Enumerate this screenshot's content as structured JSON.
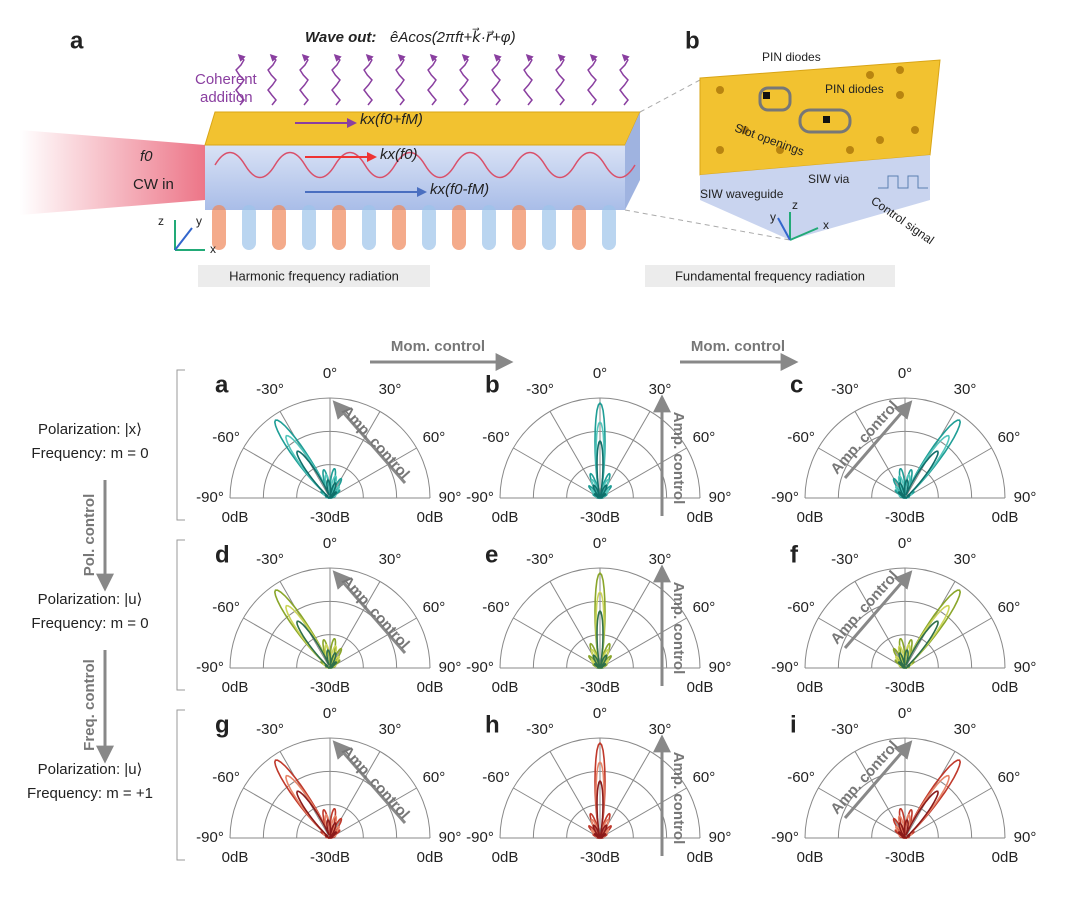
{
  "panel_a": {
    "label": "a",
    "wave_out": "Wave out:",
    "equation": "êAcos(2πft+k⃗·r⃗+φ)",
    "coherent_addition": [
      "Coherent",
      "addition"
    ],
    "f0": "f0",
    "cw_in": "CW in",
    "k_upper": "kx(f0+fM)",
    "k_mid": "kx(f0)",
    "k_lower": "kx(f0-fM)",
    "axes": [
      "z",
      "y",
      "x"
    ],
    "caption": "Harmonic frequency radiation"
  },
  "panel_b": {
    "label": "b",
    "pin_diodes": [
      "PIN diodes",
      "PIN diodes"
    ],
    "slot_openings": "Slot openings",
    "siw_waveguide": "SIW waveguide",
    "siw_via": "SIW via",
    "control_signal": "Control signal",
    "axes": [
      "z",
      "y",
      "x"
    ],
    "caption": "Fundamental frequency radiation"
  },
  "controls": {
    "momentum": [
      "Mom. control",
      "Mom. control"
    ],
    "polarization": "Pol. control",
    "frequency": "Freq. control",
    "amplitude": "Amp. control"
  },
  "rows": [
    {
      "polarization": "Polarization: |x⟩",
      "frequency": "Frequency: m = 0",
      "colors": [
        "#1f9e96",
        "#55c7bd",
        "#0f6f6a"
      ]
    },
    {
      "polarization": "Polarization: |u⟩",
      "frequency": "Frequency: m = 0",
      "colors": [
        "#8aa62a",
        "#cdd65a",
        "#2f6f4a"
      ]
    },
    {
      "polarization": "Polarization: |u⟩",
      "frequency": "Frequency: m = +1",
      "colors": [
        "#c0392b",
        "#e8866a",
        "#8b1a1a"
      ]
    }
  ],
  "polar_axis": {
    "angle_labels": [
      "-90°",
      "-60°",
      "-30°",
      "0°",
      "30°",
      "60°",
      "90°"
    ],
    "radial_labels": [
      "0dB",
      "-30dB",
      "0dB"
    ]
  },
  "panels": [
    "a",
    "b",
    "c",
    "d",
    "e",
    "f",
    "g",
    "h",
    "i"
  ]
}
